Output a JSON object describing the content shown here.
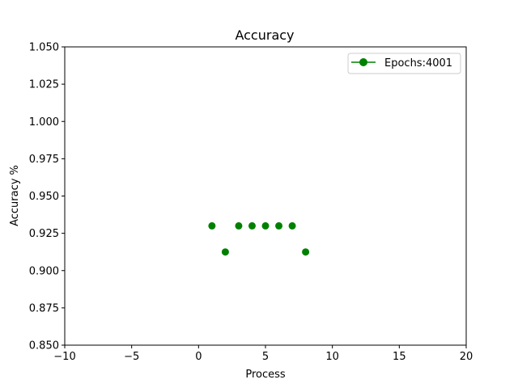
{
  "chart_data": {
    "type": "scatter",
    "title": "Accuracy",
    "xlabel": "Process",
    "ylabel": "Accuracy %",
    "xlim": [
      -10,
      20
    ],
    "ylim": [
      0.85,
      1.05
    ],
    "xticks": [
      -10,
      -5,
      0,
      5,
      10,
      15,
      20
    ],
    "xtick_labels": [
      "−10",
      "−5",
      "0",
      "5",
      "10",
      "15",
      "20"
    ],
    "yticks": [
      0.85,
      0.875,
      0.9,
      0.925,
      0.95,
      0.975,
      1.0,
      1.025,
      1.05
    ],
    "ytick_labels": [
      "0.850",
      "0.875",
      "0.900",
      "0.925",
      "0.950",
      "0.975",
      "1.000",
      "1.025",
      "1.050"
    ],
    "grid": false,
    "legend_position": "top-right",
    "series": [
      {
        "name": "Epochs:4001",
        "color": "#008000",
        "marker": "circle",
        "x": [
          1,
          2,
          3,
          4,
          5,
          6,
          7,
          8
        ],
        "y": [
          0.93,
          0.9125,
          0.93,
          0.93,
          0.93,
          0.93,
          0.93,
          0.9125
        ]
      }
    ]
  }
}
